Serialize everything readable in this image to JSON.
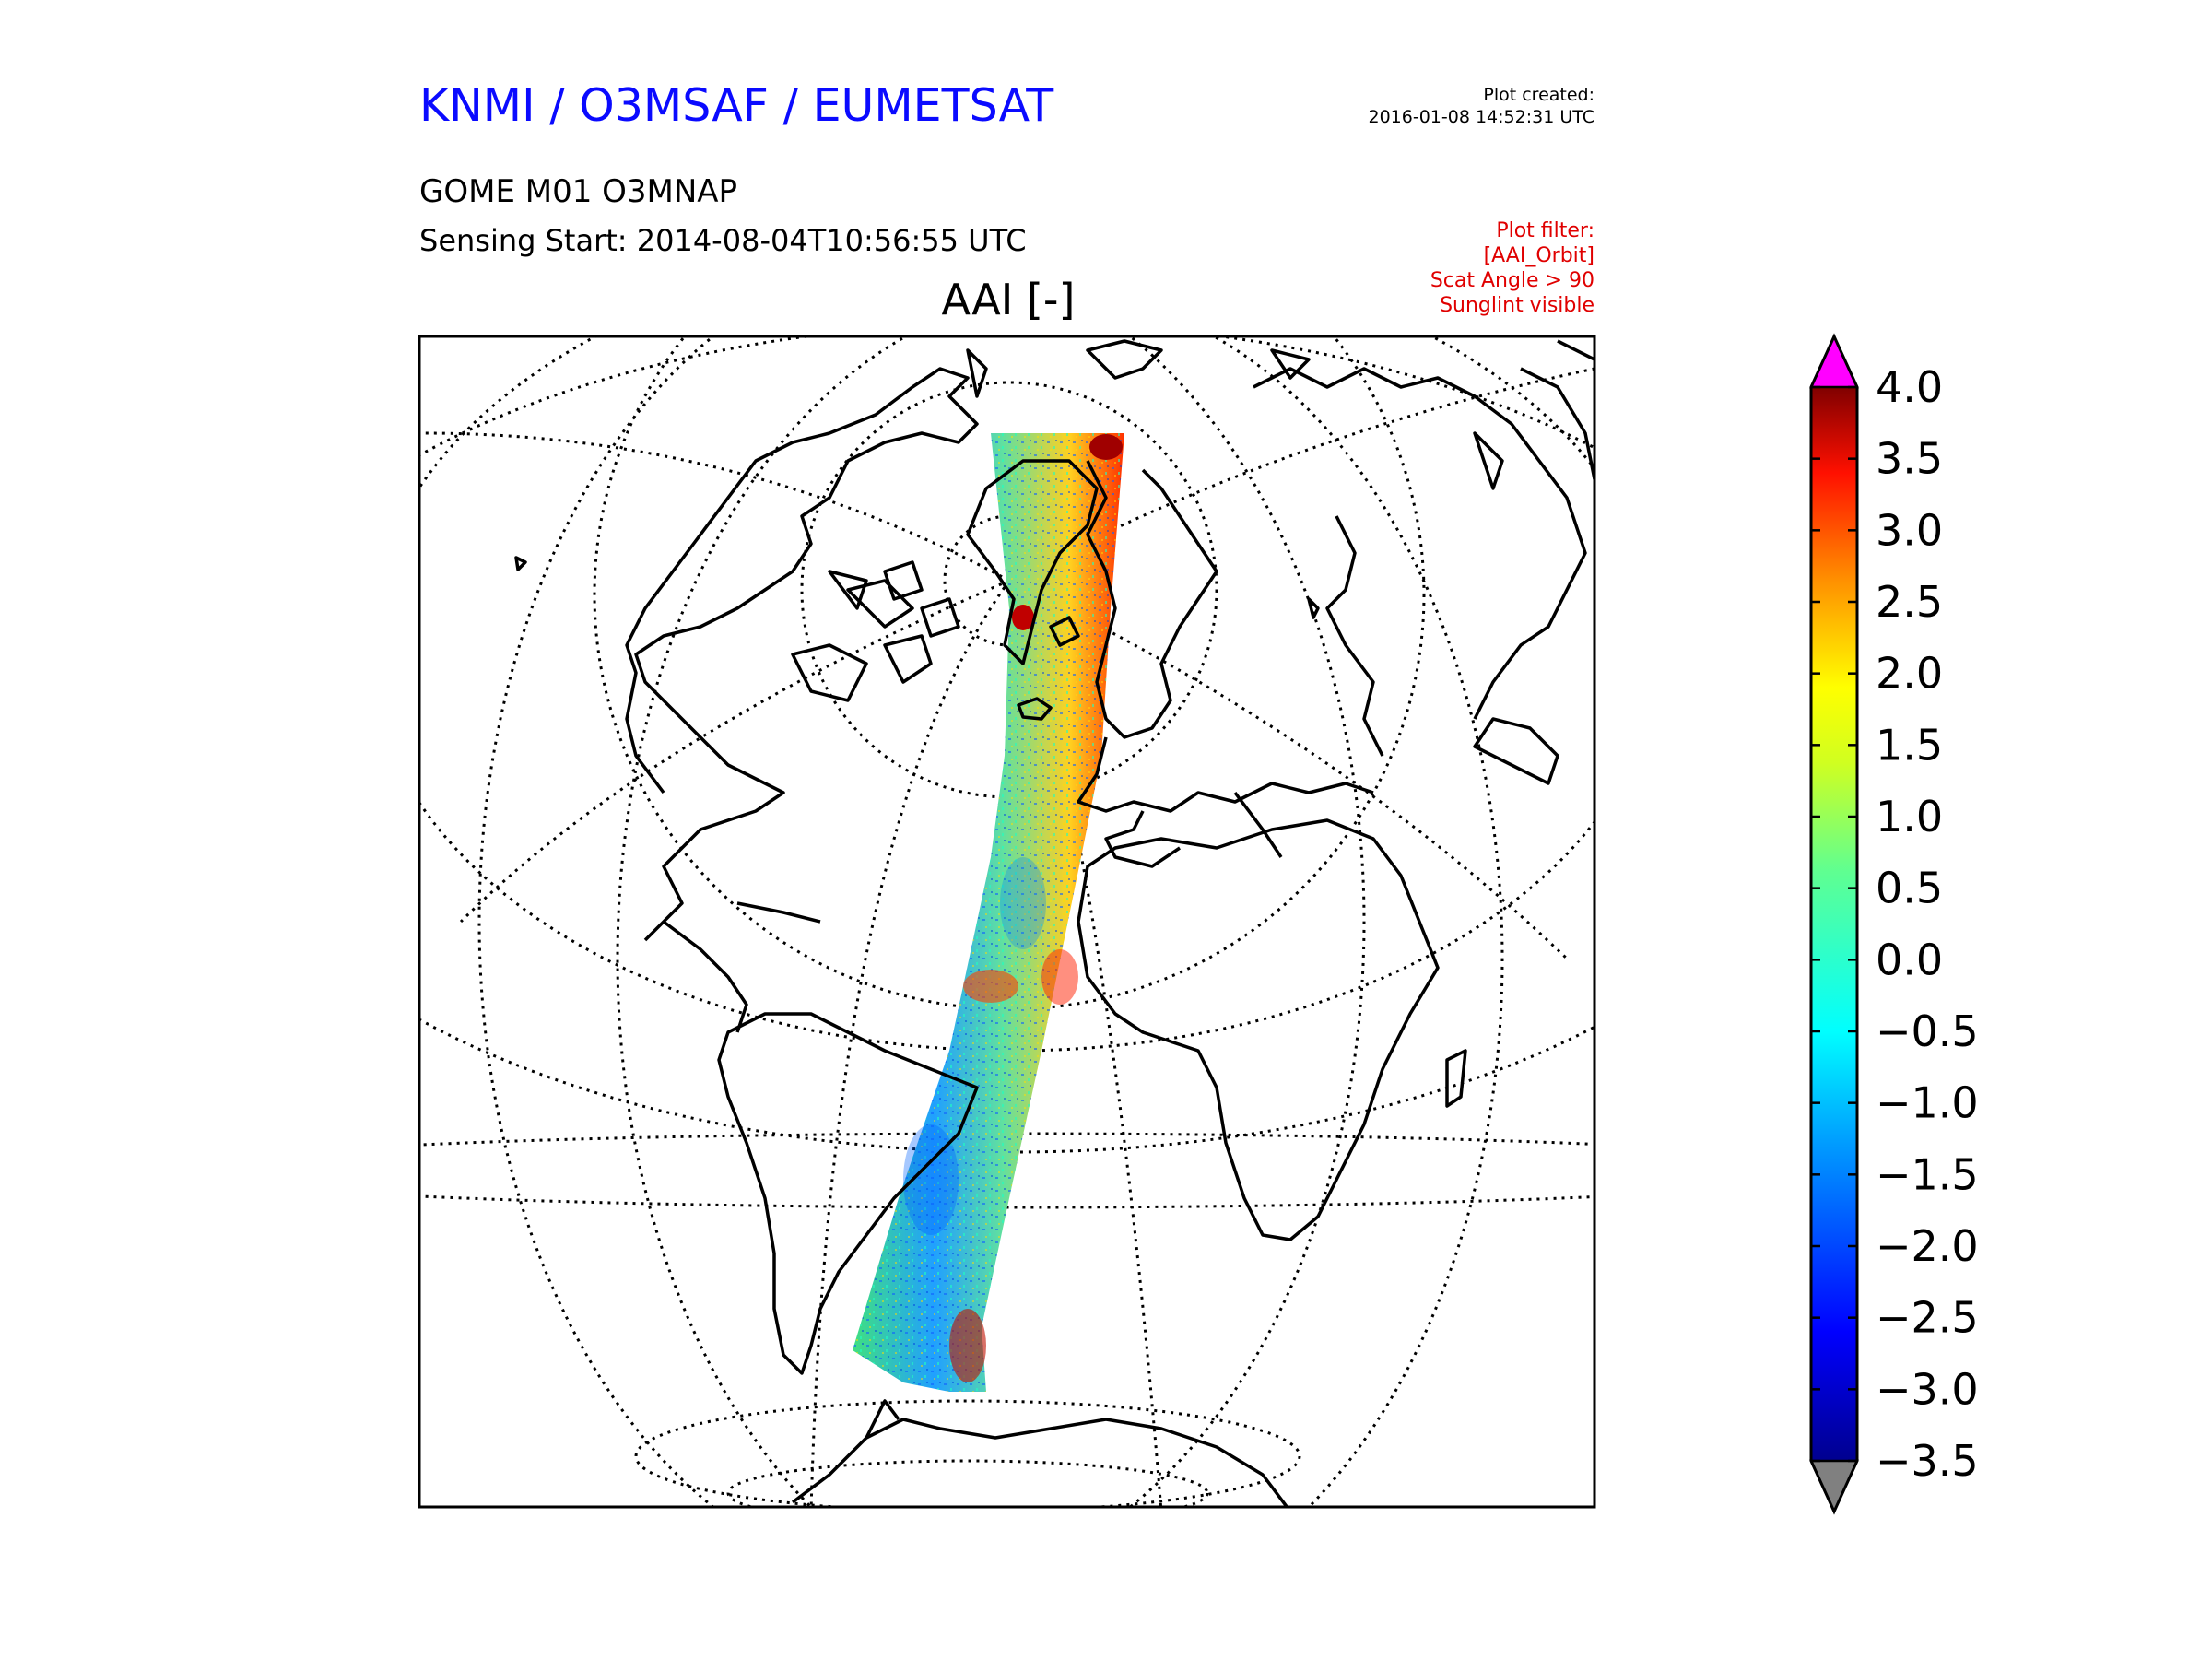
{
  "header": {
    "org_title": "KNMI / O3MSAF / EUMETSAT",
    "plot_created_label": "Plot created:",
    "plot_created_time": "2016-01-08 14:52:31 UTC",
    "product_name": "GOME M01 O3MNAP",
    "sensing_start": "Sensing Start: 2014-08-04T10:56:55 UTC",
    "field_title": "AAI [-]",
    "filter_lines": [
      "Plot filter:",
      "[AAI_Orbit]",
      "Scat Angle > 90",
      "Sunglint visible"
    ]
  },
  "colorbar": {
    "ticks": [
      "4.0",
      "3.5",
      "3.0",
      "2.5",
      "2.0",
      "1.5",
      "1.0",
      "0.5",
      "0.0",
      "−0.5",
      "−1.0",
      "−1.5",
      "−2.0",
      "−2.5",
      "−3.0",
      "−3.5"
    ],
    "over_color": "#ff00ff",
    "under_color": "#808080",
    "colormap": "jet"
  },
  "colors": {
    "title_blue": "#0a0aff",
    "filter_red": "#e00000"
  }
}
